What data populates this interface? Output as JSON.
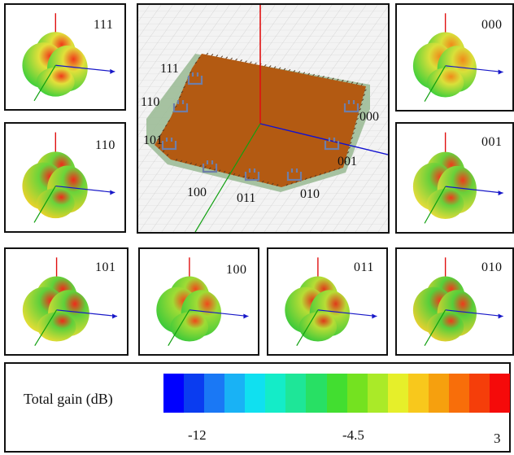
{
  "patterns": [
    {
      "id": "111",
      "label": "111",
      "colors": {
        "main": "#3fcf3a",
        "hot": "#f03a1a",
        "mid": "#e2e03a"
      }
    },
    {
      "id": "110",
      "label": "110",
      "colors": {
        "main": "#e8d22a",
        "hot": "#f02a1a",
        "mid": "#6ad43a"
      }
    },
    {
      "id": "101",
      "label": "101",
      "colors": {
        "main": "#e5dd35",
        "hot": "#f02a1a",
        "mid": "#5fd03a"
      }
    },
    {
      "id": "100",
      "label": "100",
      "colors": {
        "main": "#3cc93a",
        "hot": "#f04a1a",
        "mid": "#9fdc35"
      }
    },
    {
      "id": "011",
      "label": "011",
      "colors": {
        "main": "#3cc93a",
        "hot": "#e03a1a",
        "mid": "#b7dd35"
      }
    },
    {
      "id": "010",
      "label": "010",
      "colors": {
        "main": "#e6d030",
        "hot": "#f03a1a",
        "mid": "#56cf3a"
      }
    },
    {
      "id": "000",
      "label": "000",
      "colors": {
        "main": "#3fcf3a",
        "hot": "#f08a1a",
        "mid": "#d9e03a"
      }
    },
    {
      "id": "001",
      "label": "001",
      "colors": {
        "main": "#e6dc3a",
        "hot": "#f03a1a",
        "mid": "#68d03a"
      }
    }
  ],
  "antenna": {
    "port_labels": [
      "111",
      "110",
      "101",
      "100",
      "011",
      "010",
      "001",
      "000"
    ],
    "board_color": "#b35a12",
    "substrate_color": "#9dbd98"
  },
  "legend": {
    "title": "Total gain (dB)",
    "ticks": [
      "-12",
      "-4.5",
      "3"
    ],
    "colors": [
      "#0000ff",
      "#0a3cf0",
      "#1a78f5",
      "#19b2f5",
      "#10e0f0",
      "#14ecc8",
      "#1ee698",
      "#28e064",
      "#42de30",
      "#74e220",
      "#aaea28",
      "#e6ef2a",
      "#f8c81c",
      "#f6a00e",
      "#f86e0a",
      "#f53e0a",
      "#f50a0a"
    ]
  }
}
